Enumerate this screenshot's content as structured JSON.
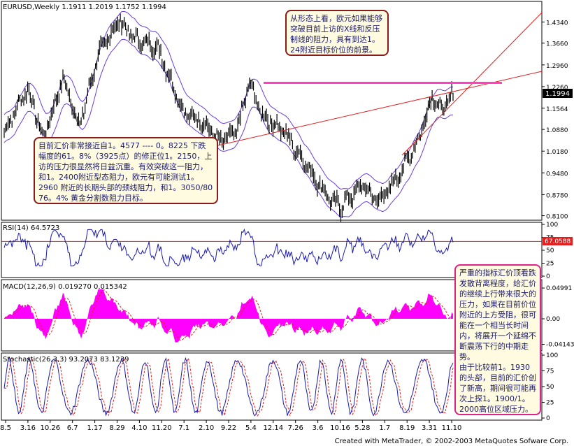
{
  "chart_data": [
    {
      "type": "candlestick",
      "header": "EURUSD,Weekly  1.1911 1.2019 1.1752 1.1994",
      "y_ticks": [
        "1.4340",
        "1.3660",
        "1.2960",
        "1.2260",
        "1.1564",
        "1.0880",
        "1.0180",
        "0.9480",
        "0.8780",
        "0.8100"
      ],
      "current_price": "1.1994",
      "resistance_level": 1.238,
      "colors": {
        "price": "#000000",
        "bands": "#6a3de0",
        "trendline": "#e02020",
        "resistance": "#ff40c0"
      }
    },
    {
      "type": "line",
      "label": "RSI(14)  64.5723",
      "y_ticks": [
        "100",
        "75",
        "50",
        "25",
        "0"
      ],
      "marker": "67.0588",
      "colors": {
        "line": "#1a1ab0",
        "level": "#e02020",
        "marker_bg": "#e02020"
      }
    },
    {
      "type": "histogram",
      "label": "MACD(12,26,9)  0.019270  0.015342",
      "y_ticks": [
        "0.04991",
        "0.00",
        "-0.04143"
      ],
      "colors": {
        "hist": "#ff00ff",
        "signal": "#e02020"
      }
    },
    {
      "type": "line",
      "label": "Stochastic(26,3,3)  93.2073  83.1239",
      "y_ticks": [
        "100",
        "75",
        "50",
        "25",
        "0"
      ],
      "colors": {
        "main": "#1a1ab0",
        "signal": "#e02020"
      }
    }
  ],
  "x_ticks": [
    "8.5",
    "3.16",
    "10.26",
    "6.7",
    "1.17",
    "8.29",
    "4.10",
    "11.20",
    "7.1",
    "2.10",
    "9.22",
    "5.4",
    "12.14",
    "7.26",
    "3.6",
    "10.16",
    "5.28",
    "1.7",
    "8.19",
    "3.31",
    "11.10"
  ],
  "notes": {
    "top": "从形态上看，欧元如果能够突破目前上访的X线和反压制线的阻力，具有到达1。24附近目标价位的前景。",
    "left": "目前汇价非常接近自1。4577 ---- 0。8225 下跌幅度的61。8%（3925点）的修正位1。2150，上访的压力很显然将日益沉重。有效突破这一阻力，和1。2400附近型态阻力，欧元有可能测试1。2960 附近的长期头部的颈线阻力，和1。3050/80 76。4% 黄金分割数阻力目标。",
    "right": "严重的指标汇价顶看跌发散背离程度，给汇价的继续上行带来很大的压力，如果在目前价位附近的上方受阻，很可能在一个相当长时间内，将展开一个延绵不断震荡下行的中期走势。\n由于比较前1。1930的头部，目前的汇价创了新高，期间很可能再次上探1。1900/1。2000高位区域压力。"
  },
  "footer": "Created with MetaTrader, © 2002-2003 MetaQuotes Sofware Corp."
}
